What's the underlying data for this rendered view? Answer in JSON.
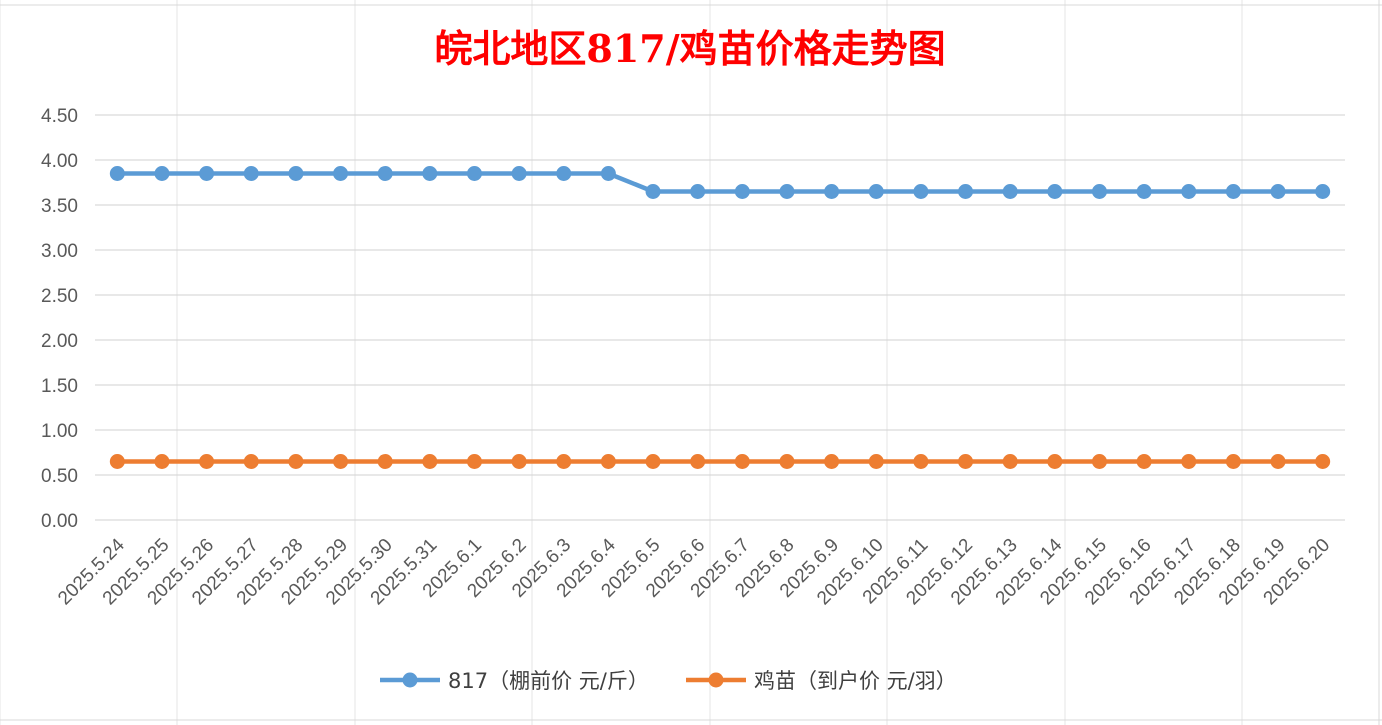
{
  "chart_data": {
    "type": "line",
    "title": "皖北地区817/鸡苗价格走势图",
    "categories": [
      "2025.5.24",
      "2025.5.25",
      "2025.5.26",
      "2025.5.27",
      "2025.5.28",
      "2025.5.29",
      "2025.5.30",
      "2025.5.31",
      "2025.6.1",
      "2025.6.2",
      "2025.6.3",
      "2025.6.4",
      "2025.6.5",
      "2025.6.6",
      "2025.6.7",
      "2025.6.8",
      "2025.6.9",
      "2025.6.10",
      "2025.6.11",
      "2025.6.12",
      "2025.6.13",
      "2025.6.14",
      "2025.6.15",
      "2025.6.16",
      "2025.6.17",
      "2025.6.18",
      "2025.6.19",
      "2025.6.20"
    ],
    "series": [
      {
        "name": "817（棚前价 元/斤）",
        "color": "#5b9bd5",
        "values": [
          3.85,
          3.85,
          3.85,
          3.85,
          3.85,
          3.85,
          3.85,
          3.85,
          3.85,
          3.85,
          3.85,
          3.85,
          3.65,
          3.65,
          3.65,
          3.65,
          3.65,
          3.65,
          3.65,
          3.65,
          3.65,
          3.65,
          3.65,
          3.65,
          3.65,
          3.65,
          3.65,
          3.65
        ]
      },
      {
        "name": "鸡苗（到户价 元/羽）",
        "color": "#ed7d31",
        "values": [
          0.65,
          0.65,
          0.65,
          0.65,
          0.65,
          0.65,
          0.65,
          0.65,
          0.65,
          0.65,
          0.65,
          0.65,
          0.65,
          0.65,
          0.65,
          0.65,
          0.65,
          0.65,
          0.65,
          0.65,
          0.65,
          0.65,
          0.65,
          0.65,
          0.65,
          0.65,
          0.65,
          0.65
        ]
      }
    ],
    "ylim": [
      0,
      4.5
    ],
    "yticks": [
      "0.00",
      "0.50",
      "1.00",
      "1.50",
      "2.00",
      "2.50",
      "3.00",
      "3.50",
      "4.00",
      "4.50"
    ],
    "grid": true,
    "legend_position": "bottom"
  }
}
